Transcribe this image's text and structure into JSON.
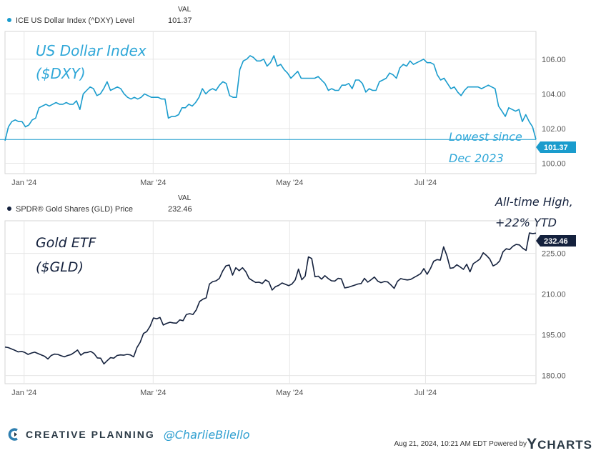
{
  "chart_data": [
    {
      "type": "line",
      "id": "dxy",
      "legend_label": "ICE US Dollar Index (^DXY) Level",
      "value_header": "VAL",
      "current_value": "101.37",
      "annotation_title": [
        "US Dollar Index",
        "($DXY)"
      ],
      "annotation_note": [
        "Lowest since",
        "Dec 2023"
      ],
      "color": "#1a9ccd",
      "ylim": [
        99.4,
        107.6
      ],
      "y_ticks": [
        100,
        102,
        104,
        106
      ],
      "y_tick_labels": [
        "100.00",
        "102.00",
        "104.00",
        "106.00"
      ],
      "x_ticks": [
        0.036,
        0.279,
        0.536,
        0.792
      ],
      "x_tick_labels": [
        "Jan '24",
        "Mar '24",
        "May '24",
        "Jul '24"
      ],
      "reference_line": 101.37,
      "values": [
        101.3,
        102.1,
        102.4,
        102.5,
        102.4,
        102.4,
        102.1,
        102.2,
        102.5,
        102.6,
        103.2,
        103.3,
        103.4,
        103.3,
        103.4,
        103.5,
        103.4,
        103.4,
        103.5,
        103.4,
        103.4,
        103.6,
        103.1,
        104.0,
        104.2,
        104.4,
        104.3,
        103.9,
        104.0,
        104.3,
        104.7,
        104.2,
        104.3,
        104.4,
        104.3,
        104.0,
        103.8,
        103.7,
        103.8,
        103.7,
        103.8,
        104.0,
        103.9,
        103.8,
        103.8,
        103.8,
        103.7,
        103.7,
        102.6,
        102.7,
        102.7,
        102.8,
        103.2,
        103.2,
        103.4,
        103.3,
        103.5,
        103.8,
        104.3,
        104.0,
        104.2,
        104.3,
        104.2,
        104.5,
        104.7,
        104.6,
        103.9,
        103.8,
        103.8,
        105.4,
        105.9,
        106.0,
        106.2,
        106.1,
        105.9,
        105.9,
        106.0,
        105.6,
        105.8,
        106.2,
        105.6,
        105.7,
        105.4,
        105.2,
        104.9,
        105.1,
        105.3,
        104.9,
        104.9,
        104.9,
        104.9,
        104.9,
        105.0,
        104.8,
        104.6,
        104.2,
        104.3,
        104.2,
        104.2,
        104.5,
        104.5,
        104.6,
        104.3,
        104.8,
        104.8,
        104.6,
        104.1,
        104.3,
        104.2,
        104.2,
        104.7,
        104.8,
        104.9,
        105.2,
        105.1,
        104.9,
        105.5,
        105.7,
        105.6,
        105.9,
        105.7,
        105.8,
        105.9,
        106.0,
        105.8,
        105.8,
        105.7,
        105.1,
        104.8,
        104.9,
        104.6,
        104.3,
        104.4,
        104.1,
        103.9,
        104.2,
        104.4,
        104.4,
        104.4,
        104.4,
        104.3,
        104.4,
        104.5,
        104.4,
        104.3,
        103.3,
        103.0,
        102.7,
        103.2,
        103.1,
        103.0,
        103.1,
        102.4,
        102.8,
        102.4,
        102.1,
        101.37
      ]
    },
    {
      "type": "line",
      "id": "gld",
      "legend_label": "SPDR® Gold Shares (GLD) Price",
      "value_header": "VAL",
      "current_value": "232.46",
      "annotation_title": [
        "Gold ETF",
        "($GLD)"
      ],
      "annotation_note": [
        "All-time High,",
        "+22% YTD"
      ],
      "color": "#14213d",
      "ylim": [
        177,
        237
      ],
      "y_ticks": [
        180,
        195,
        210,
        225
      ],
      "y_tick_labels": [
        "180.00",
        "195.00",
        "210.00",
        "225.00"
      ],
      "x_ticks": [
        0.036,
        0.279,
        0.536,
        0.792
      ],
      "x_tick_labels": [
        "Jan '24",
        "Mar '24",
        "May '24",
        "Jul '24"
      ],
      "values": [
        190.5,
        190.3,
        189.8,
        189.3,
        188.7,
        188.9,
        188.5,
        187.8,
        188.3,
        188.6,
        188.1,
        187.6,
        187.1,
        186.1,
        187.4,
        187.9,
        187.8,
        187.3,
        186.9,
        187.4,
        187.7,
        188.5,
        189.4,
        187.5,
        188.4,
        188.5,
        188.9,
        188.1,
        186.5,
        186.4,
        184.3,
        185.5,
        186.6,
        186.4,
        187.4,
        187.6,
        187.5,
        187.8,
        187.6,
        186.9,
        190.3,
        192.3,
        195.5,
        196.2,
        198.2,
        201.2,
        200.9,
        201.4,
        198.6,
        199.2,
        199.6,
        199.4,
        199.3,
        200.5,
        200.2,
        202.5,
        202.8,
        202.5,
        204.2,
        207.3,
        208.1,
        208.6,
        213.7,
        214.6,
        214.9,
        215.8,
        218.5,
        220.4,
        220.7,
        217.0,
        219.7,
        218.6,
        219.7,
        218.3,
        215.8,
        215.0,
        214.3,
        214.4,
        213.9,
        215.2,
        214.5,
        211.5,
        212.7,
        213.2,
        214.1,
        213.6,
        213.1,
        213.7,
        215.2,
        219.2,
        215.3,
        216.6,
        223.7,
        223.1,
        216.4,
        216.6,
        215.5,
        216.8,
        215.7,
        214.9,
        214.8,
        215.8,
        215.6,
        212.3,
        212.5,
        212.9,
        213.3,
        213.7,
        213.9,
        215.8,
        214.4,
        215.3,
        216.3,
        214.8,
        214.2,
        214.6,
        214.5,
        213.4,
        212.1,
        214.7,
        215.7,
        215.4,
        215.2,
        215.4,
        216.1,
        216.8,
        217.5,
        219.4,
        217.3,
        219.4,
        222.1,
        222.7,
        222.5,
        227.4,
        224.1,
        219.5,
        219.7,
        220.8,
        220.0,
        219.1,
        221.0,
        218.2,
        221.2,
        222.0,
        222.9,
        225.2,
        224.2,
        222.9,
        220.4,
        221.0,
        222.2,
        225.6,
        226.7,
        226.4,
        227.6,
        228.3,
        228.1,
        226.9,
        226.1,
        232.5,
        232.3,
        232.46
      ]
    }
  ],
  "footer": {
    "brand": "CREATIVE PLANNING",
    "handle": "@CharlieBilello",
    "timestamp": "Aug 21, 2024, 10:21 AM EDT  Powered by",
    "powered_logo_initial": "Y",
    "powered_logo_rest": "CHARTS"
  }
}
